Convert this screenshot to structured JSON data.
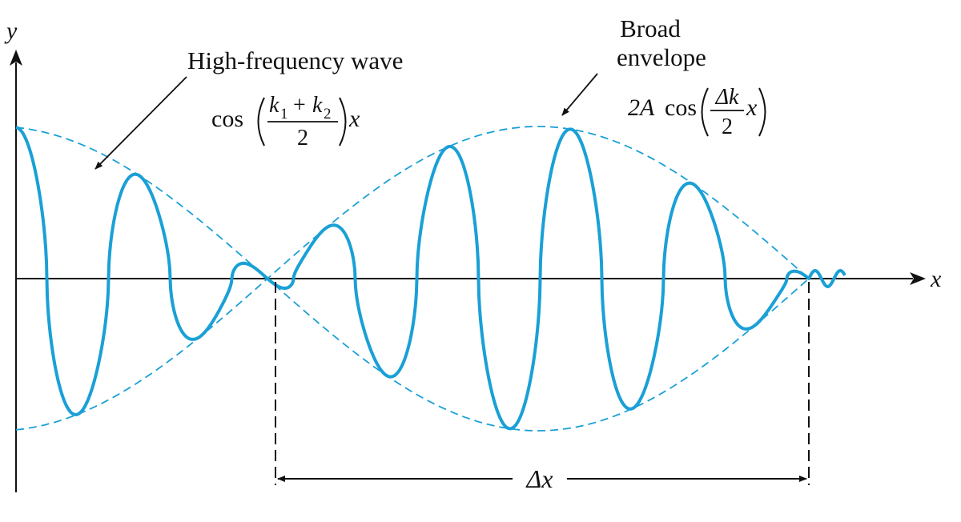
{
  "colors": {
    "wave": "#1aa0d6",
    "envelope": "#1aa0d6",
    "axes": "#111111",
    "text": "#111111"
  },
  "axes": {
    "y_label": "y",
    "x_label": "x"
  },
  "labels": {
    "high_frequency_wave": "High-frequency wave",
    "broad_envelope_line1": "Broad",
    "broad_envelope_line2": "envelope",
    "delta_x": "Δx"
  },
  "formula_carrier": {
    "func": "cos",
    "numerator_k1": "k",
    "numerator_sub1": "1",
    "plus": "+",
    "numerator_k2": "k",
    "numerator_sub2": "2",
    "denominator": "2",
    "trailing_var": "x"
  },
  "formula_envelope": {
    "prefix": "2A",
    "func": "cos",
    "numerator": "Δk",
    "denominator": "2",
    "trailing_var": "x"
  }
}
